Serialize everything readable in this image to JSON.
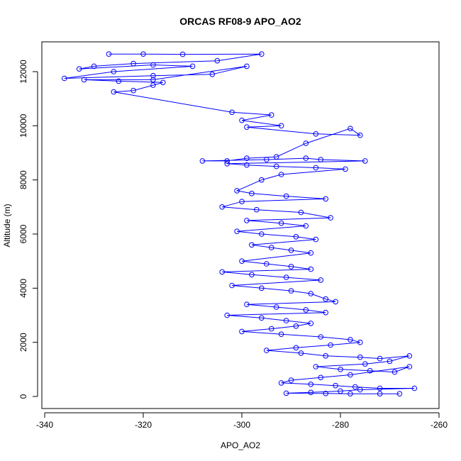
{
  "chart_data": {
    "type": "scatter",
    "title": "ORCAS RF08-9 APO_AO2",
    "xlabel": "APO_AO2",
    "ylabel": "Altitude (m)",
    "xlim": [
      -340,
      -260
    ],
    "ylim": [
      0,
      12600
    ],
    "x_ticks": [
      -340,
      -320,
      -300,
      -280,
      -260
    ],
    "y_ticks": [
      0,
      2000,
      4000,
      6000,
      8000,
      10000,
      12000
    ],
    "x_tick_labels": [
      "-340",
      "-320",
      "-300",
      "-280",
      "-260"
    ],
    "y_tick_labels": [
      "0",
      "2000",
      "4000",
      "6000",
      "8000",
      "10000",
      "12000"
    ],
    "grid": false,
    "legend": "none",
    "marker": "open-circle",
    "connect_points": true,
    "color": "#0000ff",
    "series": [
      {
        "x": [
          -327,
          -320,
          -312,
          -296,
          -305,
          -322,
          -330,
          -333,
          -318,
          -310,
          -326,
          -336,
          -318,
          -306,
          -299,
          -318,
          -332,
          -325,
          -316,
          -318,
          -322,
          -326,
          -302,
          -294,
          -300,
          -292,
          -299,
          -285,
          -276,
          -278,
          -287,
          -293,
          -299,
          -303,
          -308,
          -295,
          -287,
          -284,
          -275,
          -303,
          -299,
          -293,
          -285,
          -279,
          -292,
          -296,
          -301,
          -298,
          -291,
          -283,
          -300,
          -304,
          -297,
          -288,
          -282,
          -299,
          -292,
          -287,
          -301,
          -296,
          -289,
          -285,
          -298,
          -294,
          -290,
          -286,
          -300,
          -295,
          -290,
          -286,
          -304,
          -298,
          -291,
          -284,
          -302,
          -296,
          -290,
          -286,
          -283,
          -281,
          -299,
          -293,
          -287,
          -283,
          -303,
          -296,
          -291,
          -286,
          -289,
          -294,
          -300,
          -292,
          -284,
          -278,
          -276,
          -282,
          -289,
          -295,
          -288,
          -283,
          -276,
          -272,
          -266,
          -270,
          -275,
          -285,
          -280,
          -274,
          -269,
          -266,
          -278,
          -284,
          -290,
          -292,
          -286,
          -281,
          -277,
          -272,
          -265,
          -276,
          -280,
          -286,
          -291,
          -283,
          -278,
          -272,
          -268
        ],
        "y": [
          12650,
          12650,
          12640,
          12650,
          12400,
          12300,
          12200,
          12100,
          12250,
          12200,
          12000,
          11750,
          11850,
          11900,
          12200,
          11700,
          11700,
          11650,
          11600,
          11500,
          11300,
          11250,
          10500,
          10400,
          10200,
          10000,
          9950,
          9700,
          9650,
          9900,
          9350,
          8850,
          8800,
          8700,
          8700,
          8750,
          8800,
          8750,
          8700,
          8600,
          8550,
          8500,
          8450,
          8400,
          8200,
          8000,
          7600,
          7500,
          7400,
          7300,
          7200,
          7000,
          6900,
          6800,
          6600,
          6500,
          6400,
          6300,
          6100,
          6000,
          5900,
          5800,
          5600,
          5500,
          5400,
          5300,
          5000,
          4900,
          4800,
          4700,
          4600,
          4500,
          4400,
          4300,
          4100,
          4000,
          3900,
          3800,
          3600,
          3500,
          3400,
          3300,
          3200,
          3100,
          3000,
          2900,
          2800,
          2700,
          2600,
          2500,
          2400,
          2300,
          2200,
          2100,
          2000,
          1900,
          1800,
          1700,
          1600,
          1500,
          1450,
          1400,
          1500,
          1300,
          1200,
          1100,
          1000,
          950,
          900,
          1100,
          800,
          700,
          600,
          500,
          450,
          400,
          350,
          300,
          300,
          250,
          200,
          150,
          120,
          110,
          100,
          100,
          100
        ]
      }
    ]
  }
}
